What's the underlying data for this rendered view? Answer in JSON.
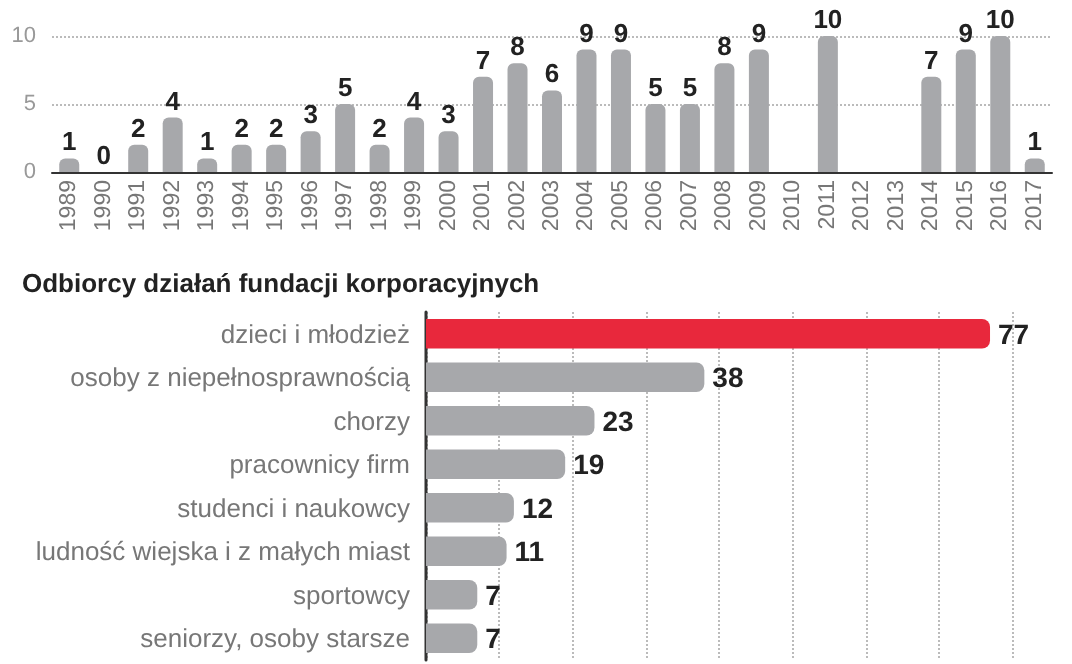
{
  "chart_data": [
    {
      "type": "bar",
      "categories": [
        "1989",
        "1990",
        "1991",
        "1992",
        "1993",
        "1994",
        "1995",
        "1996",
        "1997",
        "1998",
        "1999",
        "2000",
        "2001",
        "2002",
        "2003",
        "2004",
        "2005",
        "2006",
        "2007",
        "2008",
        "2009",
        "2010",
        "2011",
        "2012",
        "2013",
        "2014",
        "2015",
        "2016",
        "2017"
      ],
      "values": [
        1,
        0,
        2,
        4,
        1,
        2,
        2,
        3,
        5,
        2,
        4,
        3,
        7,
        8,
        6,
        9,
        9,
        5,
        5,
        8,
        9,
        null,
        10,
        null,
        null,
        7,
        9,
        10,
        1
      ],
      "colors": [
        "#a7a8ab",
        "#a7a8ab",
        "#a7a8ab",
        "#a7a8ab",
        "#a7a8ab",
        "#a7a8ab",
        "#a7a8ab",
        "#a7a8ab",
        "#a7a8ab",
        "#a7a8ab",
        "#a7a8ab",
        "#a7a8ab",
        "#a7a8ab",
        "#a7a8ab",
        "#a7a8ab",
        "#a7a8ab",
        "#a7a8ab",
        "#a7a8ab",
        "#a7a8ab",
        "#a7a8ab",
        "#a7a8ab",
        "#a7a8ab",
        "#a7a8ab",
        "#a7a8ab",
        "#e8283c",
        "#a7a8ab",
        "#a7a8ab",
        "#a7a8ab",
        "#a7a8ab"
      ],
      "ylim": [
        0,
        10
      ],
      "yticks": [
        0,
        5,
        10
      ],
      "grid": "y",
      "data_labels": true
    },
    {
      "type": "bar",
      "title": "Odbiorcy działań fundacji korporacyjnych",
      "orientation": "horizontal",
      "categories": [
        "dzieci i młodzież",
        "osoby z niepełnosprawnością",
        "chorzy",
        "pracownicy firm",
        "studenci i naukowcy",
        "ludność wiejska i z małych miast",
        "sportowcy",
        "seniorzy, osoby starsze"
      ],
      "values": [
        77,
        38,
        23,
        19,
        12,
        11,
        7,
        7
      ],
      "colors": [
        "#e8283c",
        "#a7a8ab",
        "#a7a8ab",
        "#a7a8ab",
        "#a7a8ab",
        "#a7a8ab",
        "#a7a8ab",
        "#a7a8ab"
      ],
      "xlim": [
        0,
        80
      ],
      "xticks": [
        {
          "value": 0,
          "label": null
        },
        {
          "value": 10,
          "label": null
        },
        {
          "value": 20,
          "label": null
        },
        {
          "value": 30,
          "label": null
        },
        {
          "value": 40,
          "label": null
        },
        {
          "value": 50,
          "label": null
        },
        {
          "value": 60,
          "label": null
        },
        {
          "value": 70,
          "label": null
        },
        {
          "value": 80,
          "label": null
        }
      ],
      "grid": "x",
      "tick_labels": "y",
      "data_labels": true
    }
  ]
}
